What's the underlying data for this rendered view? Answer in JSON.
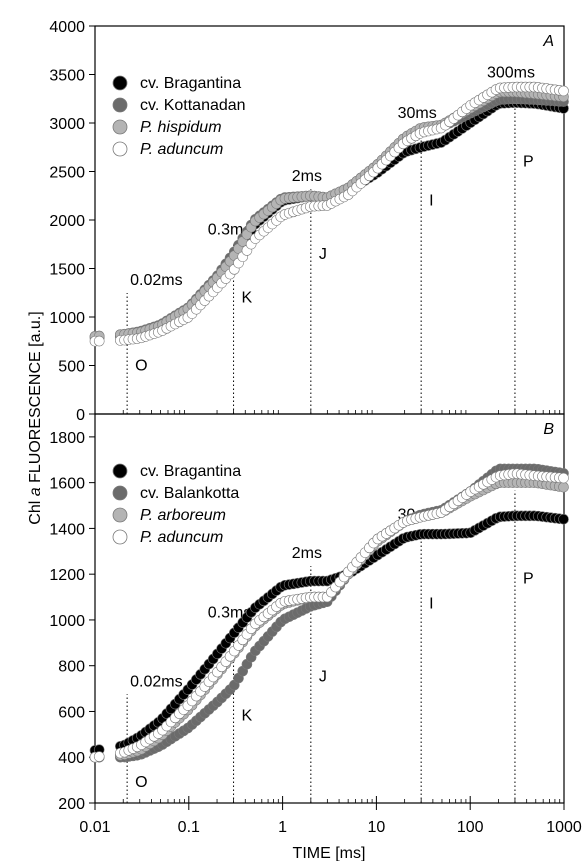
{
  "figure": {
    "ylabel_prefix": "Chl ",
    "ylabel_italic": "a",
    "ylabel_suffix": " FLUORESCENCE [a.u.]",
    "xlabel": "TIME [ms]",
    "x_ticks": [
      "0.01",
      "0.1",
      "1",
      "10",
      "100",
      "1000"
    ]
  },
  "chart_data": [
    {
      "type": "scatter",
      "panel_label": "A",
      "x_scale": "log",
      "xlim": [
        0.01,
        1000
      ],
      "ylim": [
        0,
        4000
      ],
      "y_ticks": [
        0,
        500,
        1000,
        1500,
        2000,
        2500,
        3000,
        3500,
        4000
      ],
      "legend_position": "top-left",
      "series": [
        {
          "name": "cv. Bragantina",
          "name_italic": false,
          "color": "#000000",
          "points": [
            [
              0.01,
              780
            ],
            [
              0.02,
              800
            ],
            [
              0.03,
              820
            ],
            [
              0.05,
              900
            ],
            [
              0.1,
              1080
            ],
            [
              0.2,
              1400
            ],
            [
              0.3,
              1600
            ],
            [
              0.5,
              1950
            ],
            [
              1,
              2200
            ],
            [
              2,
              2250
            ],
            [
              3,
              2230
            ],
            [
              5,
              2300
            ],
            [
              10,
              2480
            ],
            [
              20,
              2700
            ],
            [
              30,
              2750
            ],
            [
              50,
              2800
            ],
            [
              100,
              3000
            ],
            [
              200,
              3200
            ],
            [
              300,
              3210
            ],
            [
              500,
              3200
            ],
            [
              1000,
              3150
            ]
          ]
        },
        {
          "name": "cv. Kottanadan",
          "name_italic": false,
          "color": "#6b6b6b",
          "points": [
            [
              0.01,
              800
            ],
            [
              0.02,
              820
            ],
            [
              0.03,
              850
            ],
            [
              0.05,
              920
            ],
            [
              0.1,
              1100
            ],
            [
              0.2,
              1420
            ],
            [
              0.3,
              1660
            ],
            [
              0.5,
              2000
            ],
            [
              1,
              2230
            ],
            [
              2,
              2250
            ],
            [
              3,
              2230
            ],
            [
              5,
              2330
            ],
            [
              10,
              2560
            ],
            [
              20,
              2850
            ],
            [
              30,
              2940
            ],
            [
              50,
              2960
            ],
            [
              100,
              3100
            ],
            [
              200,
              3240
            ],
            [
              300,
              3250
            ],
            [
              500,
              3240
            ],
            [
              1000,
              3220
            ]
          ]
        },
        {
          "name": "P. hispidum",
          "name_italic": true,
          "color": "#b4b4b4",
          "points": [
            [
              0.01,
              800
            ],
            [
              0.02,
              820
            ],
            [
              0.03,
              840
            ],
            [
              0.05,
              910
            ],
            [
              0.1,
              1090
            ],
            [
              0.2,
              1400
            ],
            [
              0.3,
              1620
            ],
            [
              0.5,
              1980
            ],
            [
              1,
              2220
            ],
            [
              2,
              2250
            ],
            [
              3,
              2230
            ],
            [
              5,
              2330
            ],
            [
              10,
              2560
            ],
            [
              20,
              2850
            ],
            [
              30,
              2950
            ],
            [
              50,
              2980
            ],
            [
              100,
              3150
            ],
            [
              200,
              3320
            ],
            [
              300,
              3320
            ],
            [
              500,
              3300
            ],
            [
              1000,
              3270
            ]
          ]
        },
        {
          "name": "P. aduncum",
          "name_italic": true,
          "color": "#ffffff",
          "points": [
            [
              0.01,
              750
            ],
            [
              0.02,
              760
            ],
            [
              0.03,
              780
            ],
            [
              0.05,
              850
            ],
            [
              0.1,
              1000
            ],
            [
              0.2,
              1300
            ],
            [
              0.3,
              1480
            ],
            [
              0.5,
              1800
            ],
            [
              1,
              2050
            ],
            [
              2,
              2140
            ],
            [
              3,
              2150
            ],
            [
              5,
              2260
            ],
            [
              10,
              2520
            ],
            [
              20,
              2800
            ],
            [
              30,
              2900
            ],
            [
              50,
              2950
            ],
            [
              100,
              3180
            ],
            [
              200,
              3360
            ],
            [
              300,
              3370
            ],
            [
              500,
              3370
            ],
            [
              1000,
              3330
            ]
          ]
        }
      ],
      "annotations": [
        {
          "x": 0.022,
          "time_label": "0.02ms",
          "time_y": 1330,
          "phase": "O",
          "phase_y": 450
        },
        {
          "x": 0.3,
          "time_label": "0.3ms",
          "time_y": 1850,
          "phase": "K",
          "phase_y": 1150
        },
        {
          "x": 2,
          "time_label": "2ms",
          "time_y": 2400,
          "phase": "J",
          "phase_y": 1600
        },
        {
          "x": 30,
          "time_label": "30ms",
          "time_y": 3050,
          "phase": "I",
          "phase_y": 2150
        },
        {
          "x": 300,
          "time_label": "300ms",
          "time_y": 3470,
          "phase": "P",
          "phase_y": 2550
        }
      ]
    },
    {
      "type": "scatter",
      "panel_label": "B",
      "x_scale": "log",
      "xlim": [
        0.01,
        1000
      ],
      "ylim": [
        200,
        1900
      ],
      "y_ticks": [
        200,
        400,
        600,
        800,
        1000,
        1200,
        1400,
        1600,
        1800
      ],
      "legend_position": "top-left",
      "series": [
        {
          "name": "cv. Bragantina",
          "name_italic": false,
          "color": "#000000",
          "points": [
            [
              0.01,
              430
            ],
            [
              0.02,
              450
            ],
            [
              0.03,
              490
            ],
            [
              0.05,
              560
            ],
            [
              0.1,
              700
            ],
            [
              0.2,
              850
            ],
            [
              0.3,
              940
            ],
            [
              0.5,
              1050
            ],
            [
              1,
              1150
            ],
            [
              2,
              1170
            ],
            [
              3,
              1170
            ],
            [
              5,
              1200
            ],
            [
              10,
              1280
            ],
            [
              20,
              1360
            ],
            [
              30,
              1375
            ],
            [
              50,
              1375
            ],
            [
              100,
              1380
            ],
            [
              200,
              1450
            ],
            [
              300,
              1455
            ],
            [
              500,
              1455
            ],
            [
              1000,
              1440
            ]
          ]
        },
        {
          "name": "cv. Balankotta",
          "name_italic": false,
          "color": "#6b6b6b",
          "points": [
            [
              0.01,
              400
            ],
            [
              0.02,
              400
            ],
            [
              0.03,
              410
            ],
            [
              0.05,
              450
            ],
            [
              0.1,
              530
            ],
            [
              0.2,
              640
            ],
            [
              0.3,
              710
            ],
            [
              0.5,
              860
            ],
            [
              1,
              1000
            ],
            [
              2,
              1060
            ],
            [
              3,
              1080
            ],
            [
              5,
              1200
            ],
            [
              10,
              1350
            ],
            [
              20,
              1430
            ],
            [
              30,
              1460
            ],
            [
              50,
              1480
            ],
            [
              100,
              1560
            ],
            [
              200,
              1660
            ],
            [
              300,
              1660
            ],
            [
              500,
              1660
            ],
            [
              1000,
              1640
            ]
          ]
        },
        {
          "name": "P. arboreum",
          "name_italic": true,
          "color": "#b4b4b4",
          "points": [
            [
              0.01,
              400
            ],
            [
              0.02,
              410
            ],
            [
              0.03,
              430
            ],
            [
              0.05,
              490
            ],
            [
              0.1,
              610
            ],
            [
              0.2,
              760
            ],
            [
              0.3,
              850
            ],
            [
              0.5,
              970
            ],
            [
              1,
              1070
            ],
            [
              2,
              1100
            ],
            [
              3,
              1100
            ],
            [
              5,
              1200
            ],
            [
              10,
              1340
            ],
            [
              20,
              1430
            ],
            [
              30,
              1450
            ],
            [
              50,
              1470
            ],
            [
              100,
              1540
            ],
            [
              200,
              1600
            ],
            [
              300,
              1600
            ],
            [
              500,
              1600
            ],
            [
              1000,
              1580
            ]
          ]
        },
        {
          "name": "P. aduncum",
          "name_italic": true,
          "color": "#ffffff",
          "points": [
            [
              0.01,
              400
            ],
            [
              0.02,
              420
            ],
            [
              0.03,
              450
            ],
            [
              0.05,
              510
            ],
            [
              0.1,
              630
            ],
            [
              0.2,
              770
            ],
            [
              0.3,
              860
            ],
            [
              0.5,
              980
            ],
            [
              1,
              1080
            ],
            [
              2,
              1100
            ],
            [
              3,
              1100
            ],
            [
              5,
              1210
            ],
            [
              10,
              1350
            ],
            [
              20,
              1430
            ],
            [
              30,
              1450
            ],
            [
              50,
              1470
            ],
            [
              100,
              1560
            ],
            [
              200,
              1630
            ],
            [
              300,
              1640
            ],
            [
              500,
              1630
            ],
            [
              1000,
              1620
            ]
          ]
        }
      ],
      "annotations": [
        {
          "x": 0.022,
          "time_label": "0.02ms",
          "time_y": 710,
          "phase": "O",
          "phase_y": 270
        },
        {
          "x": 0.3,
          "time_label": "0.3ms",
          "time_y": 1010,
          "phase": "K",
          "phase_y": 560
        },
        {
          "x": 2,
          "time_label": "2ms",
          "time_y": 1270,
          "phase": "J",
          "phase_y": 730
        },
        {
          "x": 30,
          "time_label": "30ms",
          "time_y": 1440,
          "phase": "I",
          "phase_y": 1050
        },
        {
          "x": 300,
          "time_label": "300ms",
          "time_y": 1600,
          "phase": "P",
          "phase_y": 1160
        }
      ]
    }
  ]
}
